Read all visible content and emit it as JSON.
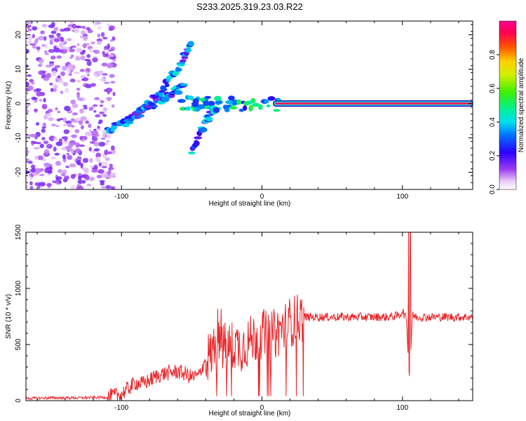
{
  "title": "S233.2025.319.23.03.R22",
  "chart_data": [
    {
      "type": "heatmap",
      "title": "S233.2025.319.23.03.R22",
      "xlabel": "Height of straight line (km)",
      "ylabel": "Frequency (Hz)",
      "xlim": [
        -168,
        150
      ],
      "ylim": [
        -25,
        24
      ],
      "xticks": [
        -100,
        0,
        100
      ],
      "xtick_labels": [
        "-100",
        "0",
        "100"
      ],
      "yticks": [
        -20,
        -10,
        0,
        10,
        20
      ],
      "ytick_labels": [
        "-20",
        "-10",
        "0",
        "10",
        "20"
      ],
      "colorbar": {
        "label": "Normalized spectral amplitude",
        "range": [
          0,
          1
        ],
        "ticks": [
          0,
          0.2,
          0.4,
          0.6,
          0.8
        ],
        "tick_labels": [
          "0.0",
          "0.2",
          "0.4",
          "0.6",
          "0.8"
        ]
      },
      "features": [
        {
          "name": "strong line",
          "x_range": [
            10,
            148
          ],
          "frequency": 0,
          "amplitude": 0.95
        },
        {
          "name": "noise region",
          "x_range": [
            -168,
            -105
          ],
          "frequency_range": [
            -25,
            24
          ],
          "amplitude": 0.2
        },
        {
          "name": "branch",
          "x": [
            -110,
            -95,
            -80,
            -65,
            -55
          ],
          "frequency": [
            -8,
            -5,
            -1,
            3,
            5
          ]
        },
        {
          "name": "branch",
          "x": [
            -50,
            -40,
            -30
          ],
          "frequency": [
            -14,
            -5,
            0
          ]
        },
        {
          "name": "branch",
          "x": [
            -90,
            -75,
            -60,
            -50
          ],
          "frequency": [
            -3,
            2,
            10,
            18
          ]
        }
      ]
    },
    {
      "type": "line",
      "xlabel": "Height of straight line (km)",
      "ylabel": "SNR (10 * v/v)",
      "xlim": [
        -168,
        150
      ],
      "ylim": [
        0,
        1500
      ],
      "xticks": [
        -100,
        0,
        100
      ],
      "xtick_labels": [
        "-100",
        "0",
        "100"
      ],
      "yticks": [
        0,
        500,
        1000,
        1500
      ],
      "ytick_labels": [
        "0",
        "500",
        "1000",
        "1500"
      ],
      "color": "#e8262a",
      "series": [
        {
          "name": "SNR",
          "x": [
            -168,
            -150,
            -130,
            -110,
            -100,
            -95,
            -90,
            -85,
            -80,
            -75,
            -70,
            -65,
            -60,
            -55,
            -50,
            -45,
            -40,
            -35,
            -30,
            -25,
            -20,
            -15,
            -10,
            -5,
            0,
            5,
            10,
            15,
            20,
            25,
            30,
            40,
            50,
            60,
            70,
            80,
            90,
            98,
            100,
            103,
            104,
            105,
            106,
            107,
            110,
            120,
            130,
            140,
            150
          ],
          "y": [
            20,
            25,
            25,
            30,
            60,
            110,
            160,
            150,
            180,
            220,
            240,
            250,
            260,
            240,
            210,
            220,
            380,
            420,
            520,
            460,
            500,
            480,
            520,
            560,
            600,
            560,
            600,
            650,
            700,
            730,
            745,
            745,
            745,
            745,
            745,
            745,
            745,
            760,
            800,
            720,
            400,
            240,
            450,
            760,
            745,
            745,
            745,
            745,
            745
          ]
        }
      ]
    }
  ]
}
